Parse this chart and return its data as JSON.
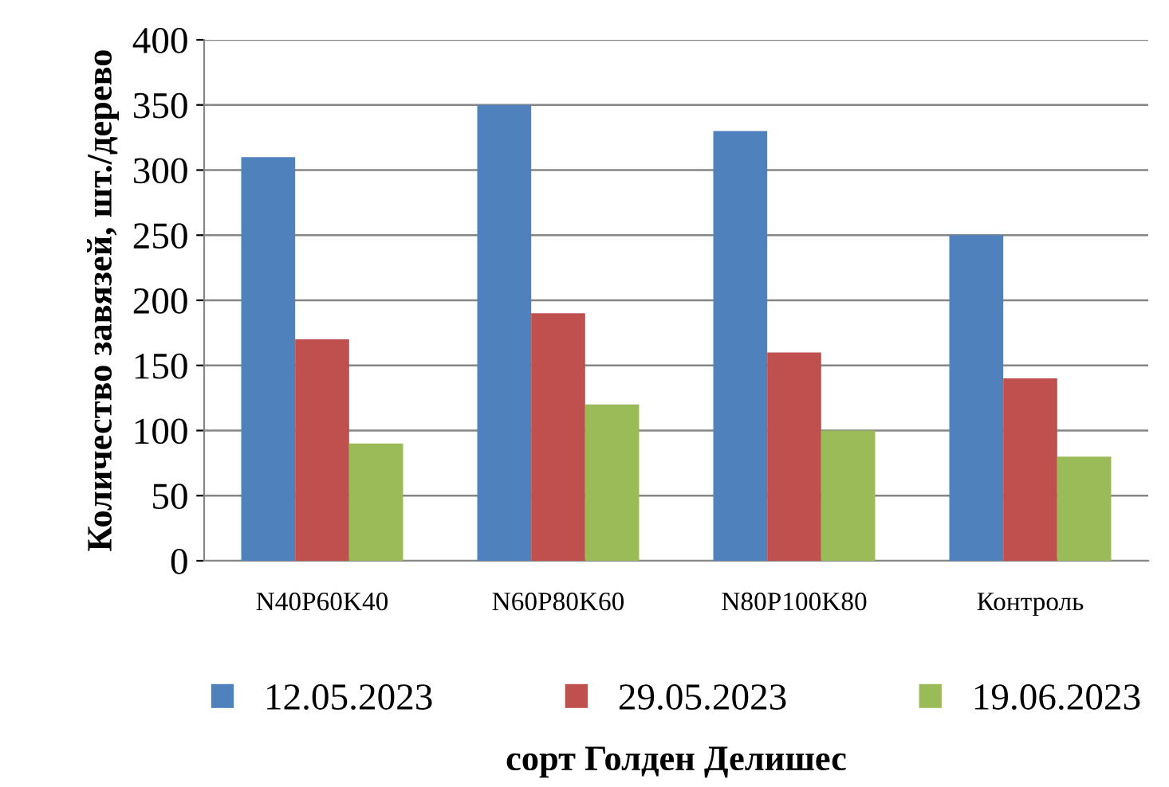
{
  "chart_data": {
    "type": "bar",
    "xlabel": "сорт Голден Делишес",
    "ylabel": "Количество завязей, шт./дерево",
    "categories": [
      "N40P60K40",
      "N60P80K60",
      "N80P100K80",
      "Контроль"
    ],
    "series": [
      {
        "name": "12.05.2023",
        "color": "#4f81bd",
        "values": [
          310,
          350,
          330,
          250
        ]
      },
      {
        "name": "29.05.2023",
        "color": "#c0504d",
        "values": [
          170,
          190,
          160,
          140
        ]
      },
      {
        "name": "19.06.2023",
        "color": "#9bbb59",
        "values": [
          90,
          120,
          100,
          80
        ]
      }
    ],
    "ylim": [
      0,
      400
    ],
    "yticks": [
      0,
      50,
      100,
      150,
      200,
      250,
      300,
      350,
      400
    ],
    "grid": "y",
    "legend": "bottom"
  }
}
